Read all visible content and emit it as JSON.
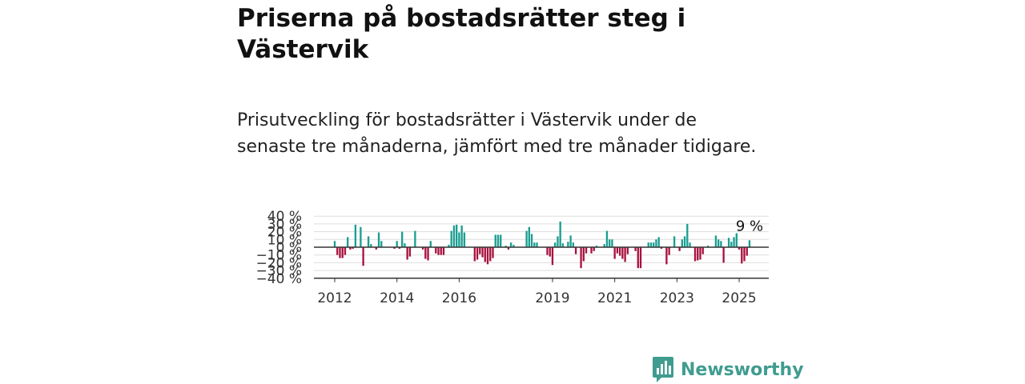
{
  "header": {
    "title": "Priserna på bostadsrätter steg i Västervik",
    "subtitle": "Prisutveckling för bostadsrätter i Västervik under de senaste tre månaderna, jämfört med tre månader tidigare."
  },
  "brand": {
    "name": "Newsworthy",
    "color": "#3f9c8f"
  },
  "chart_data": {
    "type": "bar",
    "x_start": "2012-01",
    "frequency": "monthly",
    "x_tick_labels": [
      "2012",
      "2014",
      "2016",
      "2019",
      "2021",
      "2023",
      "2025"
    ],
    "y_tick_labels": [
      "40 %",
      "30 %",
      "20 %",
      "10 %",
      "0 %",
      "−10 %",
      "−20 %",
      "−30 %",
      "−40 %"
    ],
    "ylim": [
      -40,
      40
    ],
    "grid": true,
    "colors": {
      "positive": "#1a9e91",
      "negative": "#a8123f"
    },
    "annotation": {
      "label": "9 %",
      "value": 9
    },
    "values": [
      8,
      -10,
      -14,
      -14,
      -10,
      13,
      -3,
      -2,
      29,
      0,
      26,
      -24,
      0,
      14,
      4,
      0,
      -3,
      19,
      8,
      0,
      0,
      0,
      0,
      -2,
      8,
      -2,
      20,
      5,
      -16,
      -12,
      0,
      21,
      0,
      0,
      -3,
      -15,
      -17,
      8,
      0,
      -8,
      -10,
      -10,
      -10,
      0,
      3,
      21,
      28,
      29,
      19,
      28,
      19,
      0,
      0,
      0,
      -18,
      -16,
      -9,
      -13,
      -19,
      -22,
      -18,
      -14,
      16,
      16,
      16,
      0,
      2,
      -3,
      6,
      3,
      0,
      0,
      0,
      0,
      21,
      26,
      17,
      6,
      6,
      0,
      0,
      0,
      -10,
      -12,
      -23,
      6,
      14,
      33,
      5,
      0,
      7,
      15,
      6,
      -9,
      0,
      -27,
      -18,
      -8,
      0,
      -8,
      -5,
      2,
      0,
      0,
      4,
      21,
      10,
      10,
      -15,
      -8,
      -11,
      -15,
      -19,
      -9,
      0,
      0,
      -5,
      -27,
      -27,
      0,
      0,
      6,
      6,
      6,
      10,
      13,
      -2,
      0,
      -22,
      -10,
      0,
      14,
      0,
      -5,
      10,
      14,
      30,
      6,
      0,
      -18,
      -17,
      -16,
      -9,
      0,
      2,
      0,
      0,
      15,
      10,
      8,
      -20,
      0,
      12,
      7,
      13,
      18,
      -3,
      -21,
      -18,
      -11,
      9
    ]
  }
}
